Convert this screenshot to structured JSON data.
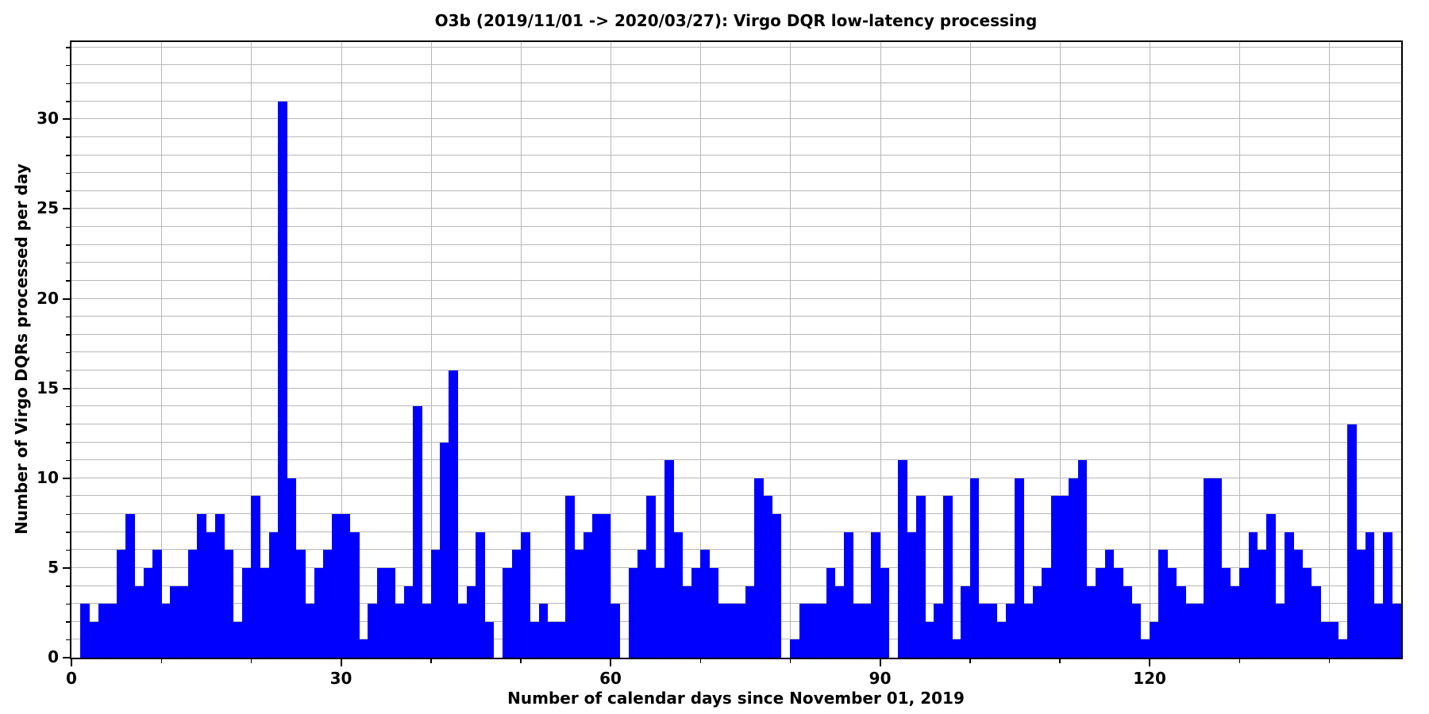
{
  "chart_data": {
    "type": "bar",
    "title": "O3b (2019/11/01 -> 2020/03/27): Virgo DQR low-latency processing",
    "xlabel": "Number of calendar days since November 01, 2019",
    "ylabel": "Number of Virgo DQRs processed per day",
    "x_start_day": 0,
    "values": [
      0,
      3,
      2,
      3,
      3,
      6,
      8,
      4,
      5,
      6,
      3,
      4,
      4,
      6,
      8,
      7,
      8,
      6,
      2,
      5,
      9,
      5,
      7,
      31,
      10,
      6,
      3,
      5,
      6,
      8,
      8,
      7,
      1,
      3,
      5,
      5,
      3,
      4,
      14,
      3,
      6,
      12,
      16,
      3,
      4,
      7,
      2,
      0,
      5,
      6,
      7,
      2,
      3,
      2,
      2,
      9,
      6,
      7,
      8,
      8,
      3,
      0,
      5,
      6,
      9,
      5,
      11,
      7,
      4,
      5,
      6,
      5,
      3,
      3,
      3,
      4,
      10,
      9,
      8,
      0,
      1,
      3,
      3,
      3,
      5,
      4,
      7,
      3,
      3,
      7,
      5,
      0,
      11,
      7,
      9,
      2,
      3,
      9,
      1,
      4,
      10,
      3,
      3,
      2,
      3,
      10,
      3,
      4,
      5,
      9,
      9,
      10,
      11,
      4,
      5,
      6,
      5,
      4,
      3,
      1,
      2,
      6,
      5,
      4,
      3,
      3,
      10,
      10,
      5,
      4,
      5,
      7,
      6,
      8,
      3,
      7,
      6,
      5,
      4,
      2,
      2,
      1,
      13,
      6,
      7,
      3,
      7,
      3
    ],
    "xlim": [
      0,
      148
    ],
    "ylim": [
      0,
      34.3
    ],
    "xticks_labeled": [
      0,
      30,
      60,
      90,
      120
    ],
    "xtick_minor_step": 10,
    "yticks_labeled": [
      0,
      5,
      10,
      15,
      20,
      25,
      30
    ],
    "ytick_minor_step": 1,
    "grid": {
      "x_step": 10,
      "y_step": 1,
      "color": "#b8b8b8"
    },
    "bar_color": "#0000ff",
    "axis_color": "#000000",
    "legend": "none",
    "grid_on": true
  }
}
